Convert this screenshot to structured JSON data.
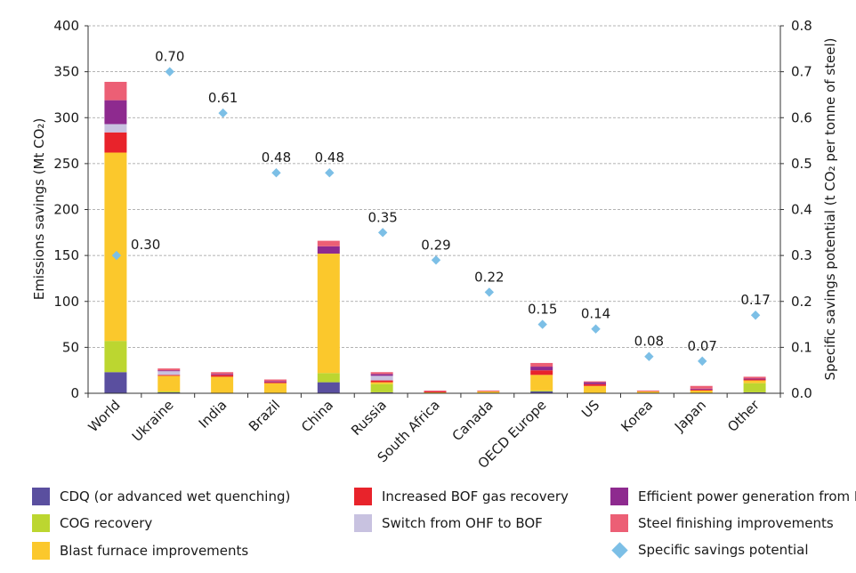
{
  "chart_data": {
    "type": "bar",
    "title": "",
    "categories": [
      "World",
      "Ukraine",
      "India",
      "Brazil",
      "China",
      "Russia",
      "South Africa",
      "Canada",
      "OECD Europe",
      "US",
      "Korea",
      "Japan",
      "Other"
    ],
    "ylabel": "Emissions savings (Mt CO₂)",
    "y2label": "Specific savings potential (t CO₂ per tonne of steel)",
    "ylim": [
      0,
      400
    ],
    "y2lim": [
      0,
      0.8
    ],
    "yticks": [
      "0",
      "50",
      "100",
      "150",
      "200",
      "250",
      "300",
      "350",
      "400"
    ],
    "y2ticks": [
      "0.0",
      "0.1",
      "0.2",
      "0.3",
      "0.4",
      "0.5",
      "0.6",
      "0.7",
      "0.8"
    ],
    "grid": "horizontal dashed",
    "stacked": true,
    "series": [
      {
        "name": "CDQ (or advanced wet quenching)",
        "color": "#5a4f9f",
        "values": [
          23,
          1,
          0,
          0,
          12,
          1,
          0,
          0,
          2,
          0,
          0,
          0,
          1
        ]
      },
      {
        "name": "COG recovery",
        "color": "#bcd630",
        "values": [
          34,
          1,
          0,
          0,
          10,
          9,
          0,
          0,
          1,
          0,
          0,
          0,
          10
        ]
      },
      {
        "name": "Blast furnace improvements",
        "color": "#fbc82c",
        "values": [
          205,
          17,
          18,
          11,
          130,
          2,
          1,
          2,
          17,
          8,
          2,
          3,
          3
        ]
      },
      {
        "name": "Increased BOF gas recovery",
        "color": "#e8232b",
        "values": [
          22,
          1,
          2,
          1,
          0,
          2,
          1,
          0,
          5,
          2,
          0,
          1,
          1
        ]
      },
      {
        "name": "Switch from OHF to BOF",
        "color": "#c8c2e0",
        "values": [
          9,
          4,
          0,
          0,
          0,
          5,
          0,
          0,
          0,
          0,
          0,
          0,
          0
        ]
      },
      {
        "name": "Efficient power generation from BF gas",
        "color": "#8e2a8f",
        "values": [
          26,
          1,
          1,
          1,
          8,
          2,
          0,
          0,
          4,
          2,
          0,
          1,
          1
        ]
      },
      {
        "name": "Steel finishing improvements",
        "color": "#ec5f75",
        "values": [
          20,
          2,
          2,
          2,
          6,
          2,
          1,
          1,
          4,
          1,
          1,
          3,
          2
        ]
      }
    ],
    "specific_savings": {
      "name": "Specific savings potential",
      "color": "#7cbfe6",
      "axis": "right",
      "values": [
        0.3,
        0.7,
        0.61,
        0.48,
        0.48,
        0.35,
        0.29,
        0.22,
        0.15,
        0.14,
        0.08,
        0.07,
        0.17
      ],
      "labels": [
        "0.30",
        "0.70",
        "0.61",
        "0.48",
        "0.48",
        "0.35",
        "0.29",
        "0.22",
        "0.15",
        "0.14",
        "0.08",
        "0.07",
        "0.17"
      ]
    },
    "legend": {
      "position": "bottom",
      "items": [
        {
          "label": "CDQ (or advanced wet quenching)",
          "color": "#5a4f9f",
          "shape": "square"
        },
        {
          "label": "COG recovery",
          "color": "#bcd630",
          "shape": "square"
        },
        {
          "label": "Blast furnace improvements",
          "color": "#fbc82c",
          "shape": "square"
        },
        {
          "label": "Increased BOF gas recovery",
          "color": "#e8232b",
          "shape": "square"
        },
        {
          "label": "Switch from OHF to BOF",
          "color": "#c8c2e0",
          "shape": "square"
        },
        {
          "label": "",
          "color": "",
          "shape": "none"
        },
        {
          "label": "Efficient power generation from BF gas",
          "color": "#8e2a8f",
          "shape": "square"
        },
        {
          "label": "Steel finishing improvements",
          "color": "#ec5f75",
          "shape": "square"
        },
        {
          "label": "Specific savings potential",
          "color": "#7cbfe6",
          "shape": "diamond"
        }
      ]
    }
  }
}
